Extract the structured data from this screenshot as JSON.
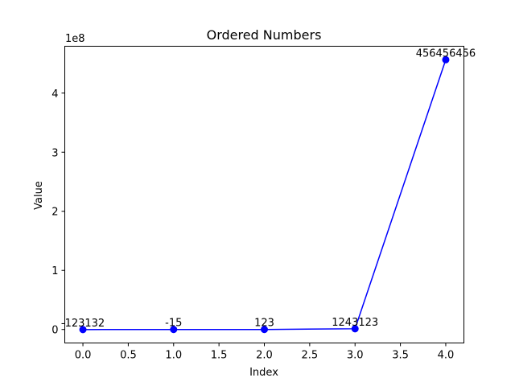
{
  "chart_data": {
    "type": "line",
    "title": "Ordered Numbers",
    "xlabel": "Index",
    "ylabel": "Value",
    "y_offset_text": "1e8",
    "y_scale_factor": 100000000,
    "xlim": [
      -0.2,
      4.2
    ],
    "ylim": [
      -22823000,
      479280000
    ],
    "x_ticks": [
      0.0,
      0.5,
      1.0,
      1.5,
      2.0,
      2.5,
      3.0,
      3.5,
      4.0
    ],
    "x_tick_labels": [
      "0.0",
      "0.5",
      "1.0",
      "1.5",
      "2.0",
      "2.5",
      "3.0",
      "3.5",
      "4.0"
    ],
    "y_ticks": [
      0,
      100000000,
      200000000,
      300000000,
      400000000
    ],
    "y_tick_labels": [
      "0",
      "1",
      "2",
      "3",
      "4"
    ],
    "grid": false,
    "series": [
      {
        "color": "#0000ff",
        "marker": "circle",
        "x": [
          0,
          1,
          2,
          3,
          4
        ],
        "values": [
          -123132,
          -15,
          123,
          1243123,
          456456456
        ],
        "labels": [
          "-123132",
          "-15",
          "123",
          "1243123",
          "456456456"
        ]
      }
    ]
  }
}
